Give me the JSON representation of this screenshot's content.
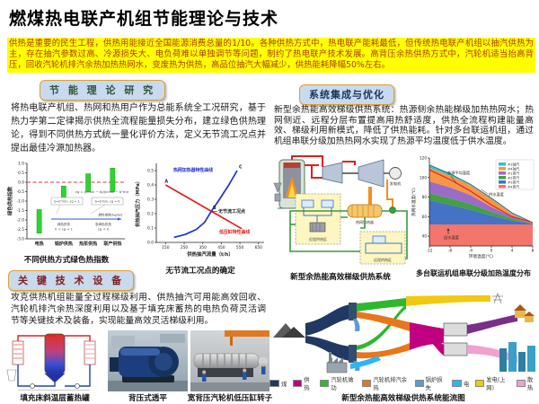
{
  "page": {
    "title": "燃煤热电联产机组节能理论与技术"
  },
  "intro": {
    "text": "供热是重要的民生工程，供热用能接近全国能源消费总量的1/10。各种供热方式中，热电联产能耗最低，但传统热电联产机组以抽汽供热为主，存在抽汽参数过高、冷源损失大、电负荷难以单独调节等问题，制约了热电联产技术发展。高背压余热供热方式中，汽轮机适当抬高背压，回收汽轮机排汽余热加热热网水，变废热为供热，高品位抽汽大幅减少，供热能耗降幅50%左右。"
  },
  "sections": {
    "theory": {
      "header": "节 能 理 论 研 究",
      "body": "将热电联产机组、热网和热用户作为总能系统全工况研究，基于热力学第二定律揭示供热全流程能量损失分布，建立绿色供热理论，得到不同供热方式统一量化评价方法，定义无节流工况点并提出最佳冷源加热器。"
    },
    "integration": {
      "header": "系统集成与优化",
      "body": "新型余热能高效梯级供热系统：热源侧余热能梯级加热热网水；热网侧近、远程分层布置提高用热舒适度，供热全流程构建能量高效、梯级利用新模式，降低了供热能耗。针对多台联运机组，通过机组串联分级加热热网水实现了热源平均温度低于供水温度。"
    },
    "equipment": {
      "header": "关 键 技 术 设 备",
      "body": "攻克供热机组能量全过程梯级利用、供热抽汽可用能高效回收、汽轮机排汽余热深度利用以及基于填充床蓄热的电热负荷灵活调节等关键技术及装备，实现能量高效灵活梯级利用。"
    }
  },
  "figures": {
    "storage_tank": {
      "caption": "填充床斜温层蓄热罐"
    },
    "turbine": {
      "caption": "背压式透平"
    },
    "rotor": {
      "caption": "宽背压汽轮机低压缸转子"
    },
    "system": {
      "caption": "新型余热能高效梯级供热系统",
      "labels": {
        "generator": "发电机",
        "heater": "热网加热器",
        "near": "近程供热区",
        "far": "远程供热区"
      }
    }
  },
  "chart_data": [
    {
      "id": "green_index",
      "type": "bar",
      "title": "不同供热方式绿色热指数",
      "ylabel": "绿色供热指数",
      "categories": [
        "电热",
        "锅炉供热",
        "热泵供热",
        "联产供热"
      ],
      "ranges": [
        [
          -2.7,
          -1.45
        ],
        [
          -0.85,
          -0.2
        ],
        [
          -0.5,
          0.45
        ],
        [
          -0.5,
          0.75
        ]
      ],
      "ylim": [
        -3.0,
        1.0
      ],
      "yticks": [
        -3.0,
        -2.5,
        -2.0,
        -1.5,
        -1.0,
        -0.5,
        0.0,
        0.5,
        1.0
      ],
      "bar_color": "#2fd42f",
      "zero_line_color": "#e06060",
      "annotations": {
        "formula": "εg = (b′min − b)/(b′min − b°min)",
        "box1": "b=b°min, εg = 1",
        "box2": "b=b′min, εg = 0",
        "axis_label": "燃料单耗(kg/GJ)",
        "green_label_1": "绿色供热",
        "green_label_2": "0 < εg < 1",
        "nongreen_label_1": "非绿色供热",
        "nongreen_label_2": "εg < 0"
      }
    },
    {
      "id": "no_throttle",
      "type": "line",
      "title": "无节流工况点的确定",
      "xlabel": "供热抽汽流量（t/h）",
      "ylabel": "供热抽汽压力（MPa）",
      "xlim": [
        100,
        680
      ],
      "ylim": [
        0,
        0.55
      ],
      "xticks": [
        150,
        250,
        350,
        450,
        550,
        650
      ],
      "yticks": [
        0.0,
        0.1,
        0.2,
        0.3,
        0.4,
        0.5
      ],
      "series": [
        {
          "name": "低压缸特性曲线",
          "color": "#e02020",
          "points": [
            [
              150,
              0.4
            ],
            [
              560,
              0.095
            ]
          ]
        },
        {
          "name": "热网加热器特性曲线",
          "color": "#2030d0",
          "points": [
            [
              195,
              0.035
            ],
            [
              255,
              0.055
            ],
            [
              315,
              0.09
            ],
            [
              360,
              0.14
            ],
            [
              395,
              0.215
            ],
            [
              440,
              0.3
            ],
            [
              490,
              0.4
            ],
            [
              535,
              0.5
            ]
          ]
        }
      ],
      "point_labels": [
        {
          "text": "A",
          "x": 150,
          "y": 0.4
        },
        {
          "text": "B",
          "x": 395,
          "y": 0.215
        },
        {
          "text": "C",
          "x": 535,
          "y": 0.5
        }
      ],
      "annotation": "无节流工况点"
    },
    {
      "id": "cascade_temp",
      "type": "area",
      "title": "多台联运机组串联分级加热温度分布",
      "xlabel": "环境温度(℃)",
      "ylabel": "热网水温度(℃)",
      "xlim": [
        -12,
        8
      ],
      "ylim": [
        30,
        120
      ],
      "xticks": [
        -12,
        -8,
        -4,
        0,
        4,
        8
      ],
      "yticks": [
        40,
        60,
        80,
        100,
        120
      ],
      "x": [
        -12,
        -8,
        -4,
        0,
        4,
        8
      ],
      "levels": [
        [
          30,
          30,
          30,
          30,
          30,
          30
        ],
        [
          52,
          52,
          52,
          52,
          52,
          52
        ],
        [
          77,
          72,
          67,
          61,
          56,
          53
        ],
        [
          84,
          79,
          73,
          65,
          58,
          53
        ],
        [
          96,
          90,
          82,
          70,
          60,
          53
        ],
        [
          110,
          102,
          92,
          78,
          63,
          53
        ],
        [
          113,
          104,
          93,
          79,
          64,
          54
        ]
      ],
      "bands": [
        {
          "name": "#4排汽",
          "color": "#f4756b"
        },
        {
          "name": "#3排汽",
          "color": "#4472c4"
        },
        {
          "name": "#2排汽",
          "color": "#43a047"
        },
        {
          "name": "#1排汽",
          "color": "#9b6bc8"
        },
        {
          "name": "#4抽汽",
          "color": "#f79646"
        },
        {
          "name": "#3抽汽",
          "color": "#29c5d6"
        }
      ],
      "lines": [
        {
          "name": "热源平均温度",
          "color": "#e02020",
          "y": [
            108,
            98,
            86,
            72,
            60,
            54
          ]
        }
      ],
      "annotations": {
        "supply": "供水温度",
        "return": "回水温度"
      }
    },
    {
      "id": "energy_flow",
      "type": "sankey",
      "title": "新型余热能高效梯级供热系统能流图",
      "legend": [
        {
          "label": "煤",
          "color": "#1f3864"
        },
        {
          "label": "供热",
          "color": "#c00080"
        },
        {
          "label": "汽轮机做功",
          "color": "#2eb82e"
        },
        {
          "label": "汽轮机排汽余热",
          "color": "#e8761a"
        },
        {
          "label": "锅炉损失",
          "color": "#5b9bd5"
        },
        {
          "label": "电",
          "color": "#29b6f6"
        },
        {
          "label": "发电(上网)",
          "color": "#f2c811"
        },
        {
          "label": "散热",
          "color": "#f2a0d0"
        }
      ]
    }
  ]
}
